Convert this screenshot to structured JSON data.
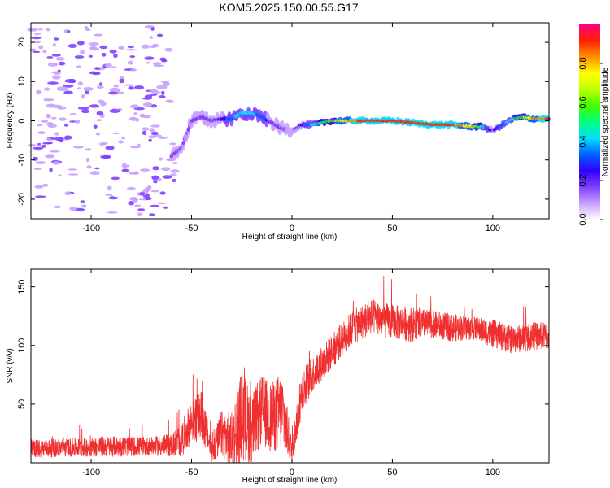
{
  "title": "KOM5.2025.150.00.55.G17",
  "chart_data": [
    {
      "type": "heatmap",
      "xlabel": "Height of straight line (km)",
      "ylabel": "Frequency (Hz)",
      "xlim": [
        -130,
        128
      ],
      "ylim": [
        -25,
        25
      ],
      "xticks": [
        -100,
        -50,
        0,
        50,
        100
      ],
      "yticks": [
        -20,
        -10,
        0,
        10,
        20
      ],
      "colorbar": {
        "label": "Normalized spectral amplitude",
        "range": [
          0,
          1
        ],
        "ticks": [
          0.0,
          0.2,
          0.4,
          0.6,
          0.8
        ],
        "tick_labels": [
          "0.0",
          "0.2",
          "0.4",
          "0.6",
          "0.8"
        ],
        "colormap": [
          "#ffffff",
          "#c8a0ff",
          "#8040ff",
          "#3000ff",
          "#0060ff",
          "#00e0ff",
          "#00ff80",
          "#40ff00",
          "#c0ff00",
          "#ffff00",
          "#ff9000",
          "#ff2000",
          "#ff0080"
        ]
      },
      "ridge": {
        "x": [
          -60,
          -55,
          -50,
          -45,
          -40,
          -35,
          -30,
          -25,
          -20,
          -15,
          -10,
          -5,
          0,
          5,
          10,
          20,
          30,
          40,
          50,
          60,
          70,
          80,
          90,
          95,
          100,
          105,
          110,
          115,
          120,
          128
        ],
        "frequency": [
          -9,
          -7,
          0,
          1,
          0,
          0.5,
          0.5,
          2,
          2,
          1,
          -0.5,
          -2,
          -2.5,
          -1,
          -1,
          0,
          0,
          0,
          0,
          -0.5,
          -1,
          -1,
          -1.5,
          -1.5,
          -2.5,
          -1,
          0.5,
          1,
          0.5,
          0.5
        ],
        "amplitude": [
          0.15,
          0.2,
          0.15,
          0.2,
          0.15,
          0.25,
          0.35,
          0.45,
          0.4,
          0.35,
          0.2,
          0.15,
          0.1,
          0.25,
          0.4,
          0.6,
          0.85,
          0.95,
          0.95,
          0.95,
          0.95,
          0.9,
          0.7,
          0.45,
          0.2,
          0.35,
          0.45,
          0.6,
          0.8,
          0.9
        ]
      }
    },
    {
      "type": "line",
      "xlabel": "Height of straight line (km)",
      "ylabel": "SNR (v/v)",
      "xlim": [
        -130,
        128
      ],
      "ylim": [
        0,
        165
      ],
      "xticks": [
        -100,
        -50,
        0,
        50,
        100
      ],
      "yticks": [
        50,
        100,
        150
      ],
      "color": "#f03030",
      "x": [
        -130,
        -110,
        -90,
        -70,
        -60,
        -55,
        -50,
        -45,
        -40,
        -35,
        -30,
        -25,
        -20,
        -15,
        -10,
        -5,
        0,
        5,
        10,
        20,
        30,
        40,
        50,
        60,
        70,
        80,
        90,
        100,
        110,
        120,
        128
      ],
      "baseline": [
        12,
        13,
        14,
        14,
        15,
        20,
        35,
        40,
        10,
        25,
        18,
        40,
        30,
        45,
        38,
        45,
        10,
        60,
        75,
        95,
        115,
        125,
        120,
        118,
        118,
        115,
        115,
        110,
        105,
        108,
        108
      ],
      "noise_amplitude": [
        8,
        8,
        9,
        8,
        10,
        15,
        18,
        22,
        10,
        20,
        25,
        40,
        30,
        30,
        30,
        35,
        10,
        20,
        15,
        15,
        15,
        15,
        15,
        15,
        12,
        12,
        10,
        12,
        12,
        12,
        12
      ]
    }
  ]
}
